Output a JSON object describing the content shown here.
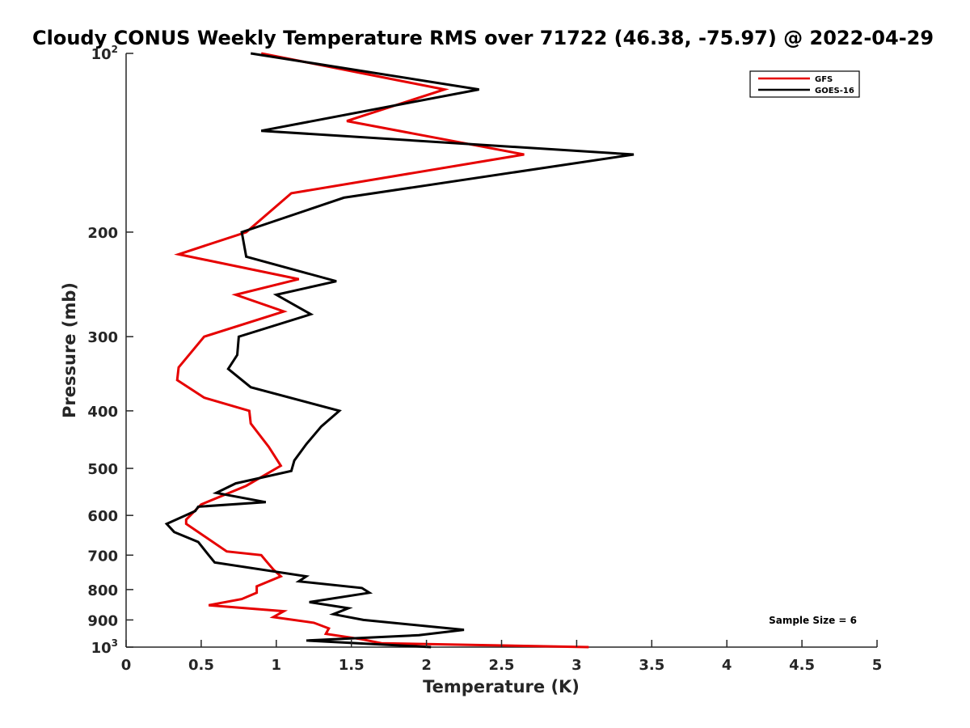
{
  "chart_data": {
    "type": "line",
    "title": "Cloudy CONUS Weekly Temperature RMS over 71722 (46.38, -75.97) @ 2022-04-29",
    "xlabel": "Temperature (K)",
    "ylabel": "Pressure (mb)",
    "xlim": [
      0,
      5
    ],
    "ylim": [
      100,
      1000
    ],
    "y_scale": "log",
    "y_reversed": true,
    "x_ticks": [
      0,
      0.5,
      1,
      1.5,
      2,
      2.5,
      3,
      3.5,
      4,
      4.5,
      5
    ],
    "x_tick_labels": [
      "0",
      "0.5",
      "1",
      "1.5",
      "2",
      "2.5",
      "3",
      "3.5",
      "4",
      "4.5",
      "5"
    ],
    "y_ticks": [
      {
        "value": 100,
        "base": "10",
        "exp": "2"
      },
      {
        "value": 200,
        "label": "200"
      },
      {
        "value": 300,
        "label": "300"
      },
      {
        "value": 400,
        "label": "400"
      },
      {
        "value": 500,
        "label": "500"
      },
      {
        "value": 600,
        "label": "600"
      },
      {
        "value": 700,
        "label": "700"
      },
      {
        "value": 800,
        "label": "800"
      },
      {
        "value": 900,
        "label": "900"
      },
      {
        "value": 1000,
        "base": "10",
        "exp": "3"
      }
    ],
    "grid": false,
    "legend_position": "top-right",
    "series": [
      {
        "name": "GFS",
        "color": "#e60000",
        "points": [
          [
            0.9,
            100
          ],
          [
            2.12,
            115
          ],
          [
            1.47,
            130
          ],
          [
            2.65,
            148
          ],
          [
            1.1,
            172
          ],
          [
            0.8,
            200
          ],
          [
            0.35,
            218
          ],
          [
            1.15,
            240
          ],
          [
            0.73,
            255
          ],
          [
            1.05,
            272
          ],
          [
            0.52,
            300
          ],
          [
            0.35,
            338
          ],
          [
            0.34,
            355
          ],
          [
            0.52,
            380
          ],
          [
            0.82,
            400
          ],
          [
            0.83,
            420
          ],
          [
            0.95,
            460
          ],
          [
            1.03,
            495
          ],
          [
            0.8,
            535
          ],
          [
            0.5,
            575
          ],
          [
            0.4,
            610
          ],
          [
            0.4,
            620
          ],
          [
            0.52,
            650
          ],
          [
            0.67,
            690
          ],
          [
            0.9,
            700
          ],
          [
            0.93,
            715
          ],
          [
            0.98,
            740
          ],
          [
            1.03,
            760
          ],
          [
            0.87,
            790
          ],
          [
            0.87,
            810
          ],
          [
            0.77,
            830
          ],
          [
            0.55,
            850
          ],
          [
            1.05,
            870
          ],
          [
            0.98,
            890
          ],
          [
            1.25,
            910
          ],
          [
            1.35,
            930
          ],
          [
            1.33,
            950
          ],
          [
            1.57,
            970
          ],
          [
            1.7,
            985
          ],
          [
            3.08,
            1000
          ]
        ]
      },
      {
        "name": "GOES-16",
        "color": "#000000",
        "points": [
          [
            0.83,
            100
          ],
          [
            2.35,
            115
          ],
          [
            0.9,
            135
          ],
          [
            3.38,
            148
          ],
          [
            1.45,
            175
          ],
          [
            0.77,
            200
          ],
          [
            0.8,
            220
          ],
          [
            1.4,
            242
          ],
          [
            1.0,
            255
          ],
          [
            1.23,
            275
          ],
          [
            0.75,
            300
          ],
          [
            0.74,
            322
          ],
          [
            0.68,
            340
          ],
          [
            0.83,
            365
          ],
          [
            1.42,
            400
          ],
          [
            1.3,
            425
          ],
          [
            1.2,
            455
          ],
          [
            1.12,
            485
          ],
          [
            1.1,
            505
          ],
          [
            0.73,
            530
          ],
          [
            0.6,
            550
          ],
          [
            0.93,
            570
          ],
          [
            0.48,
            580
          ],
          [
            0.46,
            590
          ],
          [
            0.27,
            620
          ],
          [
            0.32,
            640
          ],
          [
            0.48,
            665
          ],
          [
            0.55,
            700
          ],
          [
            0.59,
            720
          ],
          [
            1.2,
            760
          ],
          [
            1.15,
            775
          ],
          [
            1.57,
            795
          ],
          [
            1.62,
            810
          ],
          [
            1.22,
            840
          ],
          [
            1.48,
            860
          ],
          [
            1.38,
            880
          ],
          [
            1.58,
            900
          ],
          [
            2.25,
            935
          ],
          [
            1.95,
            955
          ],
          [
            1.2,
            975
          ],
          [
            2.03,
            1000
          ]
        ]
      }
    ],
    "annotation": "Sample Size = 6"
  }
}
